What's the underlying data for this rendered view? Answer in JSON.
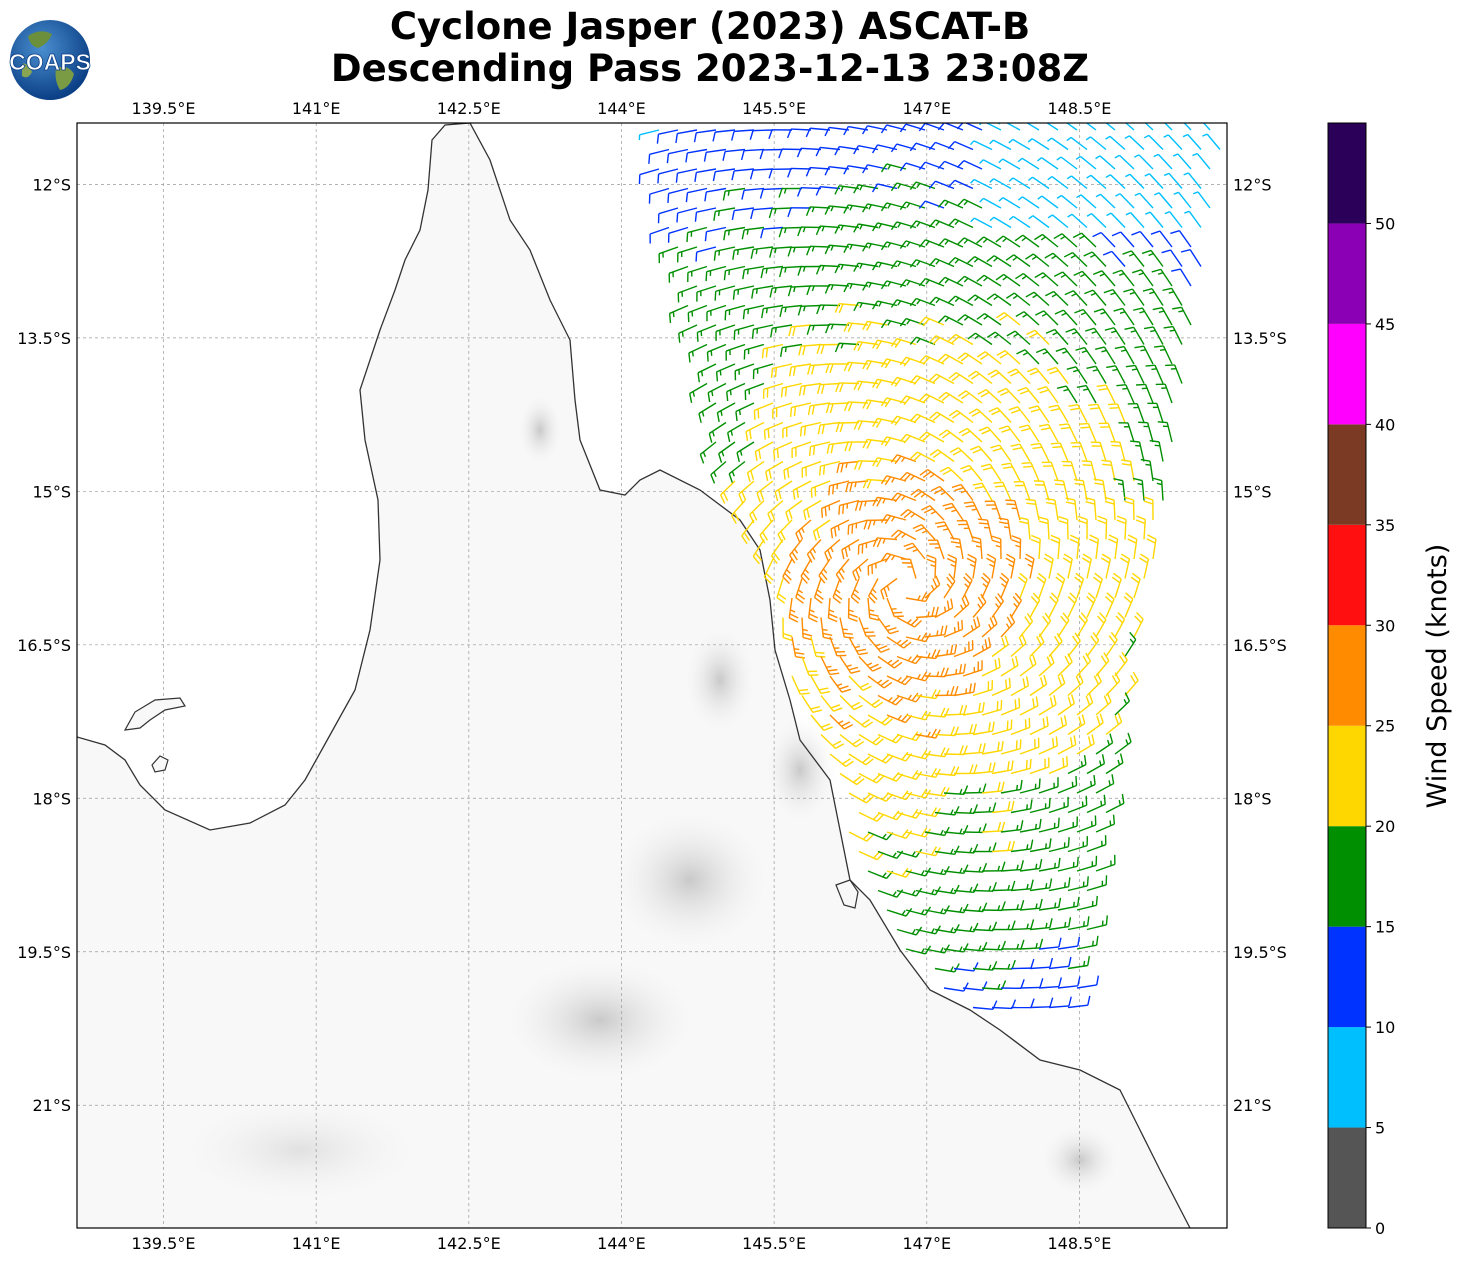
{
  "header": {
    "title_line1": "Cyclone Jasper (2023) ASCAT-B",
    "title_line2": "Descending Pass 2023-12-13 23:08Z",
    "logo_text": "COAPS"
  },
  "map": {
    "lon_range": [
      138.65,
      149.95
    ],
    "lat_range": [
      -22.2,
      -11.4
    ],
    "lon_ticks": [
      "139.5°E",
      "141°E",
      "142.5°E",
      "144°E",
      "145.5°E",
      "147°E",
      "148.5°E"
    ],
    "lon_tick_values": [
      139.5,
      141,
      142.5,
      144,
      145.5,
      147,
      148.5
    ],
    "lat_ticks": [
      "12°S",
      "13.5°S",
      "15°S",
      "16.5°S",
      "18°S",
      "19.5°S",
      "21°S"
    ],
    "lat_tick_values": [
      -12,
      -13.5,
      -15,
      -16.5,
      -18,
      -19.5,
      -21
    ],
    "gridlines": true,
    "basemap": "grayscale terrain, black coastline",
    "swath": "ASCAT-B descending pass wind barbs"
  },
  "colorbar": {
    "label": "Wind Speed (knots)",
    "ticks": [
      "0",
      "5",
      "10",
      "15",
      "20",
      "25",
      "30",
      "35",
      "40",
      "45",
      "50"
    ],
    "bins": [
      {
        "min": 0,
        "max": 5,
        "color": "#555555"
      },
      {
        "min": 5,
        "max": 10,
        "color": "#00bfff"
      },
      {
        "min": 10,
        "max": 15,
        "color": "#0033ff"
      },
      {
        "min": 15,
        "max": 20,
        "color": "#008f00"
      },
      {
        "min": 20,
        "max": 25,
        "color": "#ffd700"
      },
      {
        "min": 25,
        "max": 30,
        "color": "#ff8c00"
      },
      {
        "min": 30,
        "max": 35,
        "color": "#ff0f0f"
      },
      {
        "min": 35,
        "max": 40,
        "color": "#7a3a24"
      },
      {
        "min": 40,
        "max": 45,
        "color": "#ff00ff"
      },
      {
        "min": 45,
        "max": 50,
        "color": "#8b00b5"
      },
      {
        "min": 50,
        "max": 55,
        "color": "#2a0058"
      }
    ]
  }
}
